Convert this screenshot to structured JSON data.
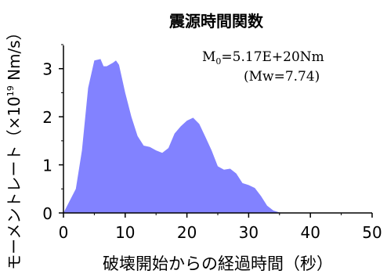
{
  "chart_data": {
    "type": "area",
    "title": "震源時間関数",
    "xlabel": "破壊開始からの経過時間（秒）",
    "ylabel_main": "モーメントレート（×10",
    "ylabel_exp": "19",
    "ylabel_unit": " Nm/s）",
    "annotation_line1_prefix": "M",
    "annotation_line1_sub": "0",
    "annotation_line1_suffix": "=5.17E+20Nm",
    "annotation_line2": "(Mw=7.74)",
    "xlim": [
      0,
      50
    ],
    "ylim": [
      0,
      3.5
    ],
    "x_ticks": [
      0,
      10,
      20,
      30,
      40,
      50
    ],
    "x_tick_labels": [
      "0",
      "10",
      "20",
      "30",
      "40",
      "50"
    ],
    "y_ticks": [
      0,
      1,
      2,
      3
    ],
    "y_tick_labels": [
      "0",
      "1",
      "2",
      "3"
    ],
    "fill_color": "#8282ff",
    "series": [
      {
        "x": [
          0,
          2,
          3,
          4,
          5,
          6,
          6.5,
          7,
          8,
          8.5,
          9,
          10,
          11,
          12,
          13,
          14,
          15,
          16,
          17,
          18,
          19,
          20,
          21,
          22,
          23,
          24,
          25,
          26,
          27,
          28,
          29,
          30,
          31,
          32,
          33,
          34,
          35,
          36
        ],
        "y": [
          0,
          0.5,
          1.3,
          2.6,
          3.17,
          3.2,
          3.05,
          3.05,
          3.12,
          3.17,
          3.08,
          2.5,
          2.0,
          1.6,
          1.4,
          1.37,
          1.3,
          1.25,
          1.35,
          1.65,
          1.8,
          1.92,
          1.98,
          1.85,
          1.58,
          1.3,
          0.97,
          0.9,
          0.92,
          0.82,
          0.62,
          0.58,
          0.52,
          0.35,
          0.15,
          0.05,
          0.01,
          0
        ]
      }
    ]
  }
}
